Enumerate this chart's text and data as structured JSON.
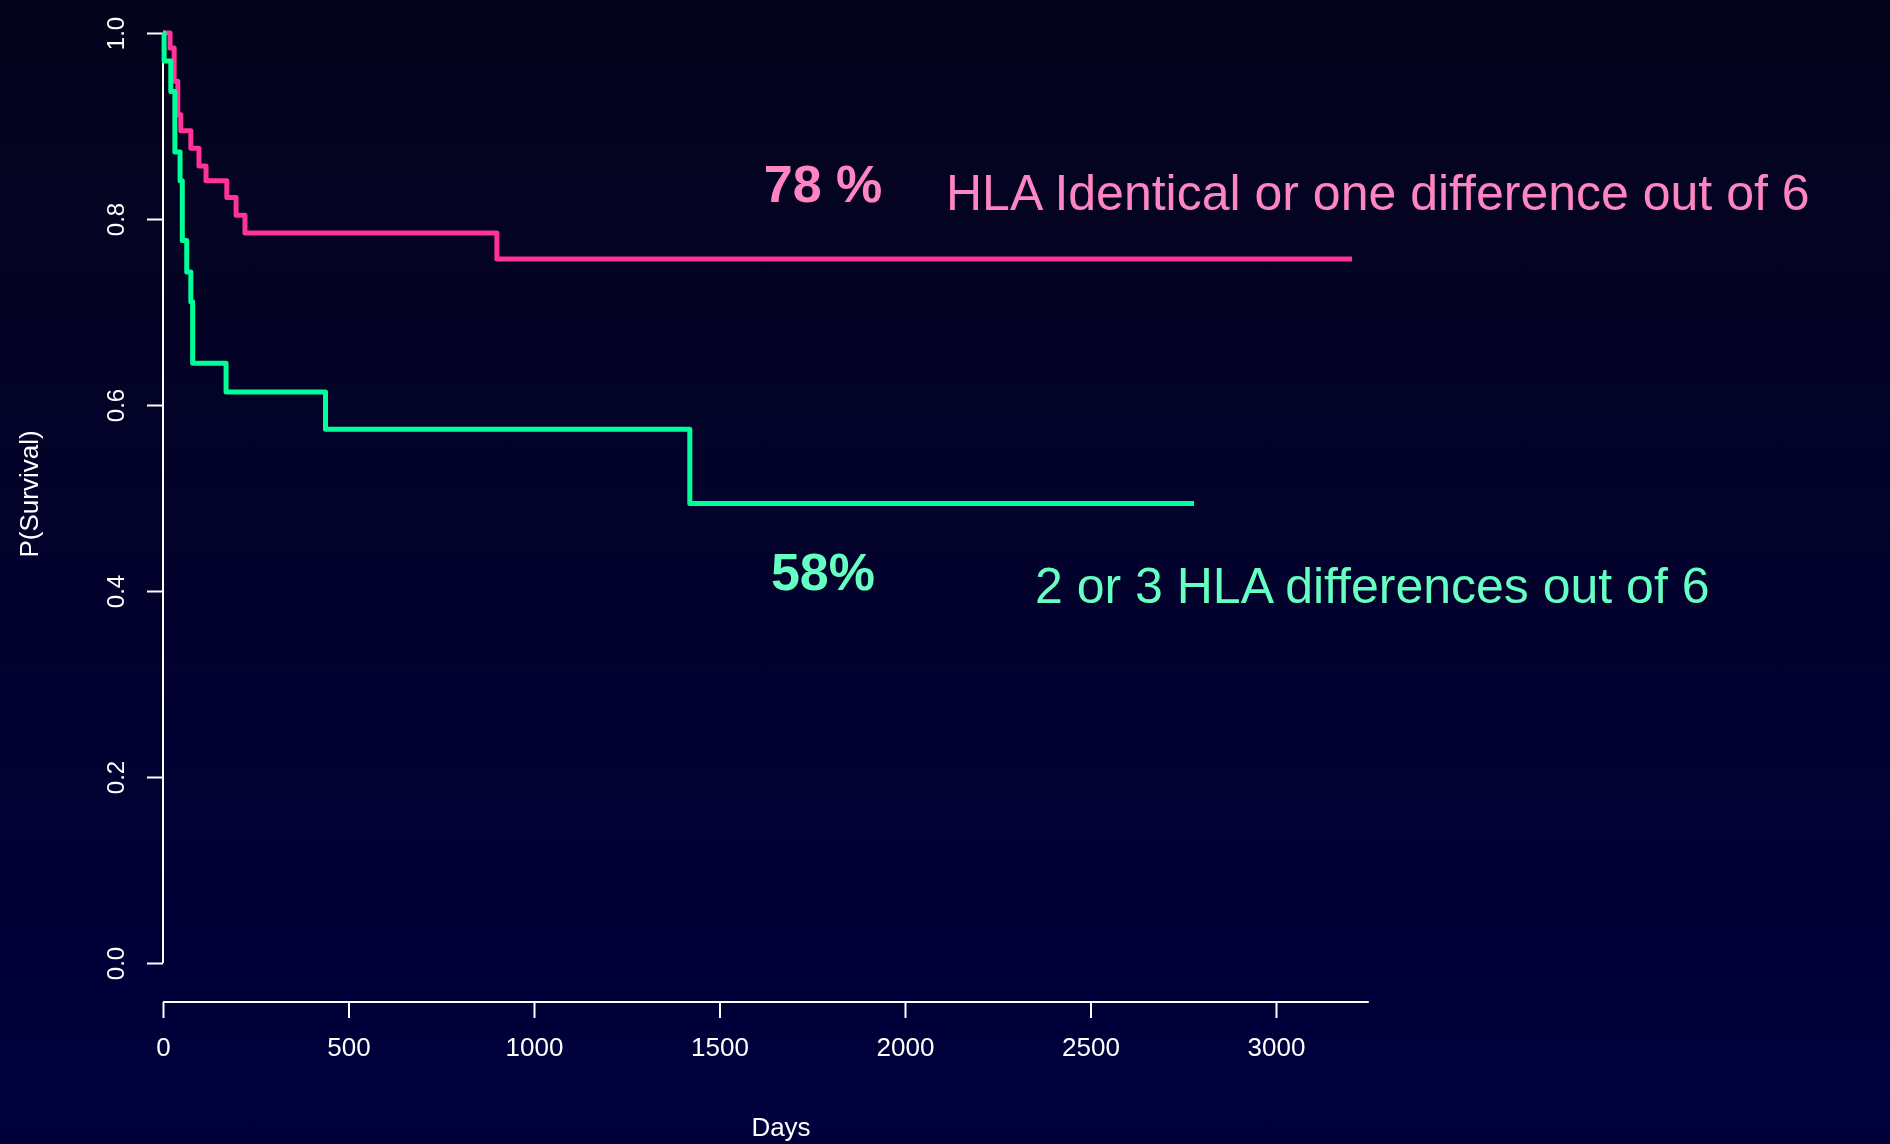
{
  "chart_data": {
    "type": "step",
    "xlabel": "Days",
    "ylabel": "P(Survival)",
    "xlim": [
      0,
      3250
    ],
    "ylim": [
      0,
      1
    ],
    "xticks": [
      0,
      500,
      1000,
      1500,
      2000,
      2500,
      3000
    ],
    "yticks": [
      {
        "value": 0,
        "label": "0.0"
      },
      {
        "value": 0.2,
        "label": "0.2"
      },
      {
        "value": 0.4,
        "label": "0.4"
      },
      {
        "value": 0.6,
        "label": "0.6"
      },
      {
        "value": 0.8,
        "label": "0.8"
      },
      {
        "value": 1,
        "label": "1.0"
      }
    ],
    "series": [
      {
        "name": "HLA Identical or one difference out of 6",
        "color": "#ff3399",
        "x": [
          0,
          19,
          30,
          40,
          48,
          75,
          97,
          116,
          172,
          197,
          221,
          900,
          3205
        ],
        "values": [
          1,
          0.984,
          0.948,
          0.912,
          0.895,
          0.876,
          0.857,
          0.841,
          0.823,
          0.804,
          0.785,
          0.757,
          0.757
        ]
      },
      {
        "name": "2 or 3 HLA differences out of 6",
        "color": "#00ff99",
        "x": [
          0,
          3,
          21,
          32,
          46,
          52,
          64,
          75,
          80,
          170,
          438,
          1420,
          2779
        ],
        "values": [
          1,
          0.97,
          0.937,
          0.872,
          0.841,
          0.777,
          0.743,
          0.711,
          0.645,
          0.614,
          0.574,
          0.494,
          0.494
        ]
      }
    ],
    "annotations": [
      "78 %",
      "58%"
    ],
    "grid": false,
    "marker": "none",
    "line_style": "solid"
  }
}
